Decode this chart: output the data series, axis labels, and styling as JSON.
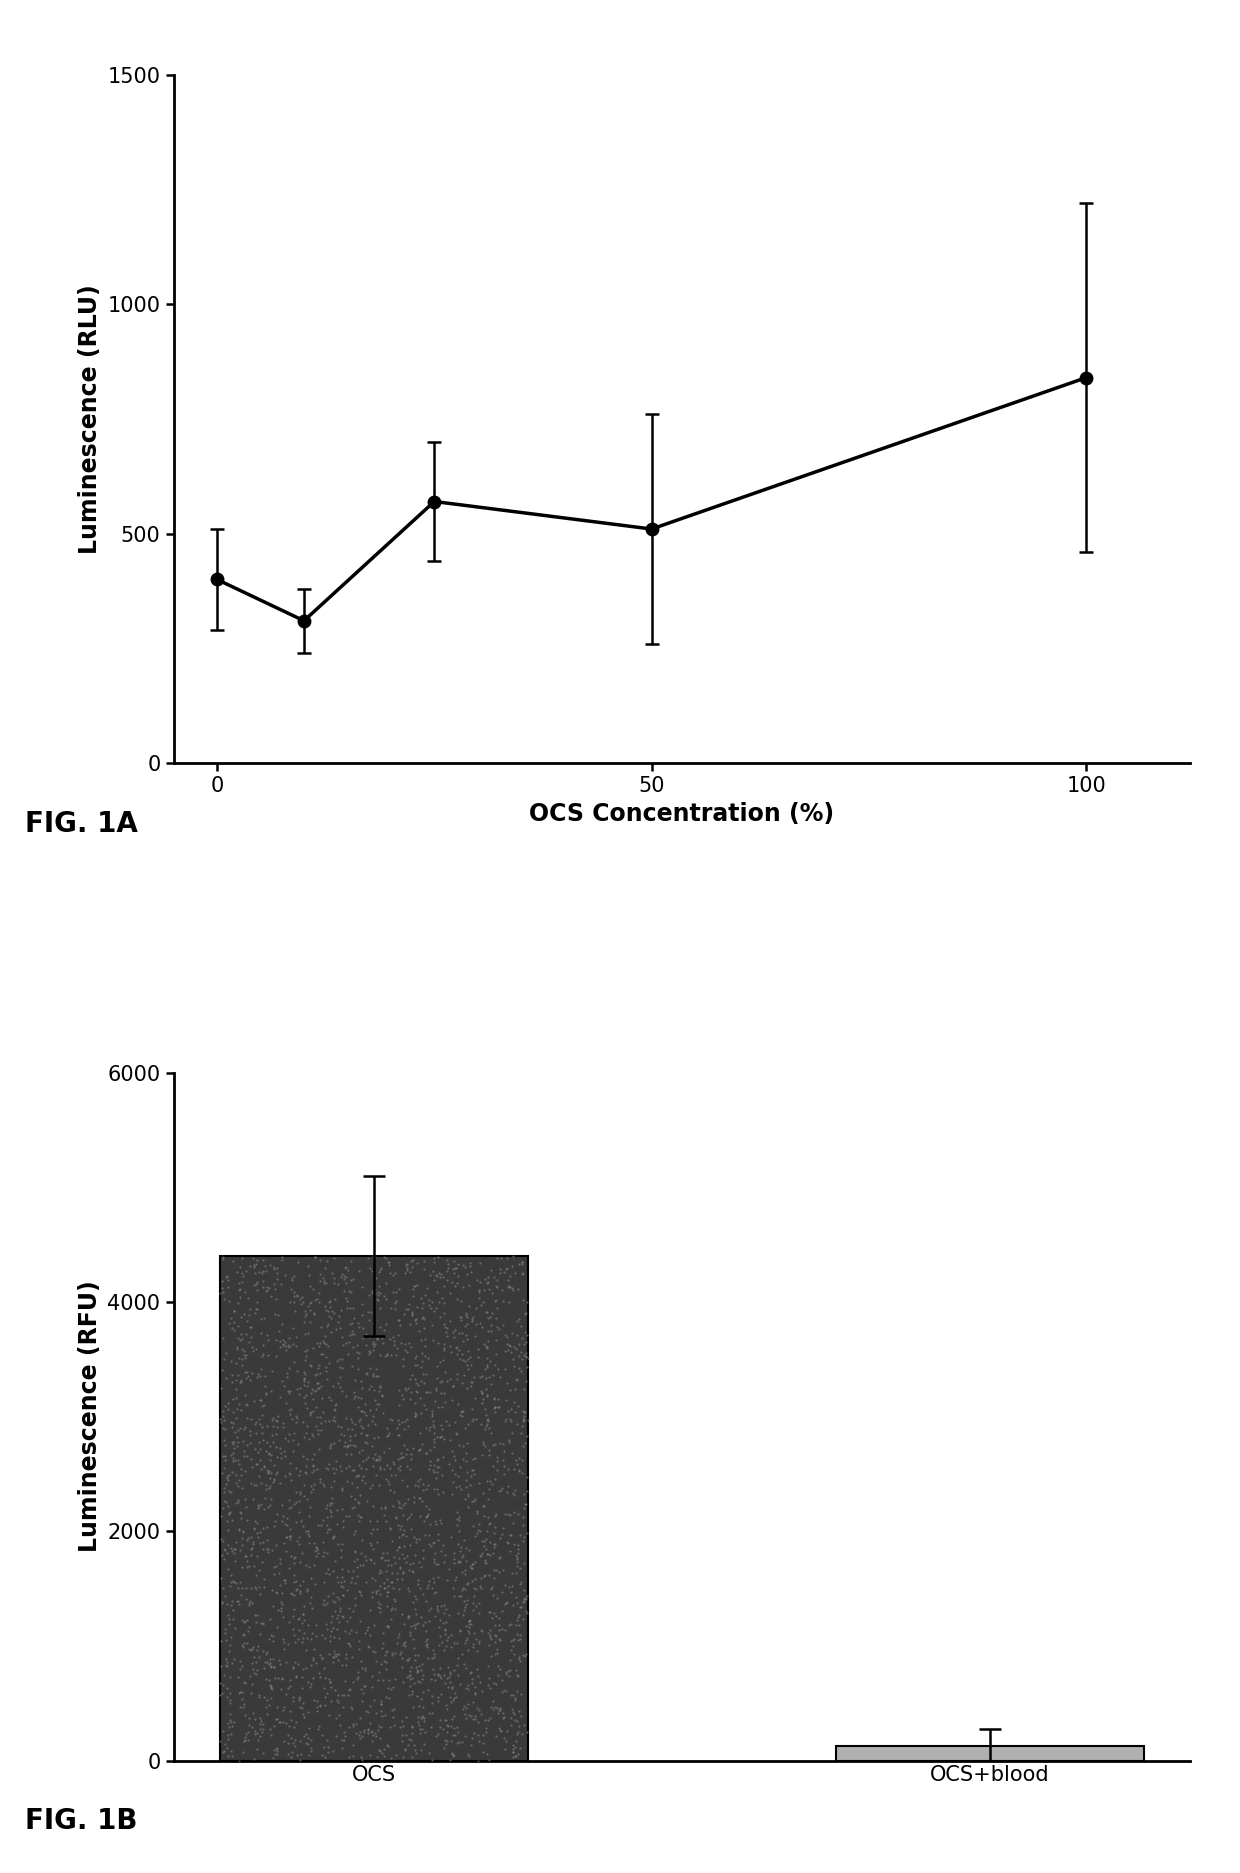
{
  "fig1a": {
    "x": [
      0,
      10,
      25,
      50,
      100
    ],
    "y": [
      400,
      310,
      570,
      510,
      840
    ],
    "yerr": [
      110,
      70,
      130,
      250,
      380
    ],
    "xlabel": "OCS Concentration (%)",
    "ylabel": "Luminescence (RLU)",
    "ylim": [
      0,
      1500
    ],
    "yticks": [
      0,
      500,
      1000,
      1500
    ],
    "xticks": [
      0,
      50,
      100
    ],
    "label": "FIG. 1A",
    "line_color": "#000000",
    "marker": "o",
    "markersize": 9,
    "linewidth": 2.5,
    "capsize": 5
  },
  "fig1b": {
    "categories": [
      "OCS",
      "OCS+blood"
    ],
    "values": [
      4400,
      130
    ],
    "yerr": [
      700,
      150
    ],
    "ylabel": "Luminescence (RFU)",
    "ylim": [
      0,
      6000
    ],
    "yticks": [
      0,
      2000,
      4000,
      6000
    ],
    "label": "FIG. 1B",
    "bar_color_dark": "#3a3a3a",
    "bar_color_light": "#b0b0b0",
    "bar_width": 0.5,
    "capsize": 8,
    "linewidth": 2.0
  },
  "background_color": "#ffffff",
  "label_fontsize": 17,
  "tick_fontsize": 15,
  "fig_label_fontsize": 20
}
